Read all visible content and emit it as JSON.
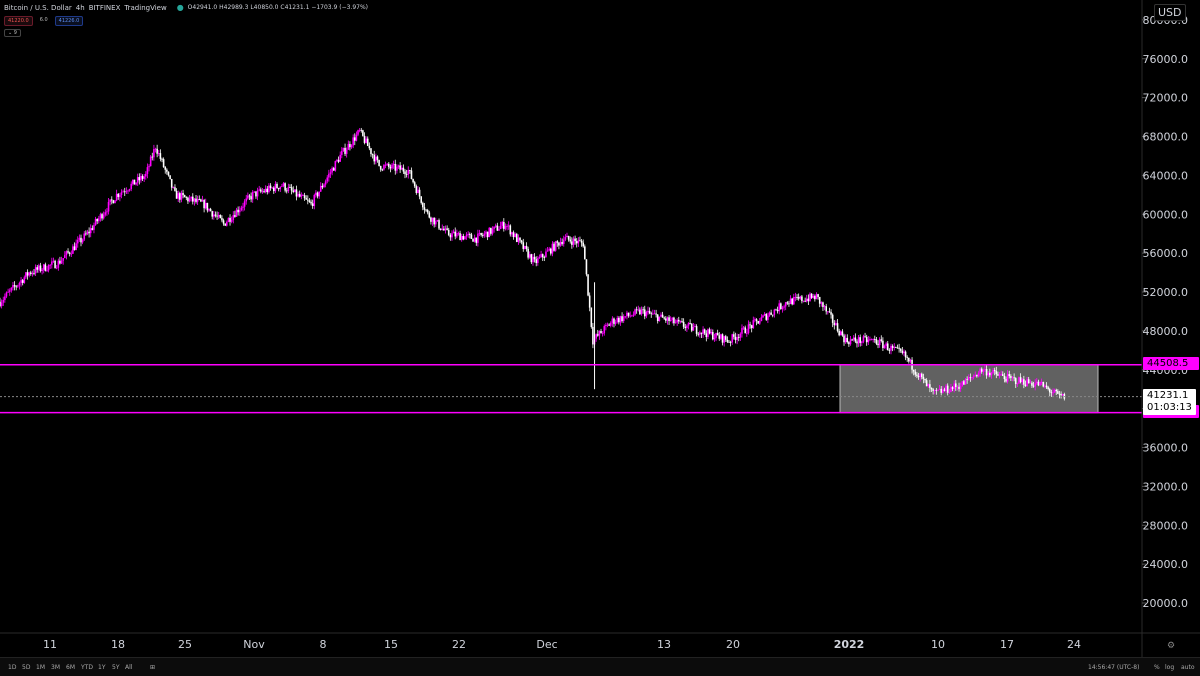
{
  "header": {
    "symbol": "Bitcoin / U.S. Dollar",
    "interval": "4h",
    "exchange": "BITFINEX",
    "source": "TradingView",
    "ohlc": "O42941.0 H42989.3 L40850.0 C41231.1 −1703.9 (−3.97%)"
  },
  "legend": {
    "bid": "41220.0",
    "spread": "6.0",
    "ask": "41226.0",
    "indicator": "9"
  },
  "currency": "USD",
  "colors": {
    "up": "#ff00ff",
    "down": "#ffffff",
    "level_line": "#ff00ff",
    "box": "#8a8a8a",
    "background": "#000000"
  },
  "current_price": {
    "value": 41231.1,
    "label": "41231.1",
    "countdown": "01:03:13"
  },
  "level_labels": [
    "44508.5",
    "39586.5"
  ],
  "time_axis": [
    "11",
    "18",
    "25",
    "Nov",
    "8",
    "15",
    "22",
    "Dec",
    "13",
    "20",
    "2022",
    "10",
    "17",
    "24"
  ],
  "bottom_bar": {
    "timeframes": [
      "1D",
      "5D",
      "1M",
      "3M",
      "6M",
      "YTD",
      "1Y",
      "5Y",
      "All"
    ],
    "clock": "14:56:47 (UTC-8)",
    "options": [
      "%",
      "log",
      "auto"
    ]
  },
  "chart_data": {
    "type": "line",
    "ylabel": "",
    "xlabel": "",
    "ylim": [
      16000,
      82000
    ],
    "y_ticks": [
      20000,
      24000,
      28000,
      32000,
      36000,
      40000,
      44000,
      48000,
      52000,
      56000,
      60000,
      64000,
      68000,
      72000,
      76000,
      80000
    ],
    "y_tick_labels": [
      "20000.0",
      "24000.0",
      "28000.0",
      "32000.0",
      "36000.0",
      "40000.0",
      "44000.0",
      "48000.0",
      "52000.0",
      "56000.0",
      "60000.0",
      "64000.0",
      "68000.0",
      "72000.0",
      "76000.0",
      "80000.0"
    ],
    "x": [
      "2021-10-04",
      "2021-10-07",
      "2021-10-10",
      "2021-10-13",
      "2021-10-16",
      "2021-10-19",
      "2021-10-20",
      "2021-10-22",
      "2021-10-25",
      "2021-10-27",
      "2021-10-30",
      "2021-11-02",
      "2021-11-05",
      "2021-11-08",
      "2021-11-10",
      "2021-11-12",
      "2021-11-15",
      "2021-11-17",
      "2021-11-19",
      "2021-11-22",
      "2021-11-25",
      "2021-11-28",
      "2021-12-01",
      "2021-12-03",
      "2021-12-04",
      "2021-12-06",
      "2021-12-09",
      "2021-12-12",
      "2021-12-15",
      "2021-12-18",
      "2021-12-21",
      "2021-12-24",
      "2021-12-27",
      "2021-12-30",
      "2022-01-02",
      "2022-01-05",
      "2022-01-08",
      "2022-01-11",
      "2022-01-13",
      "2022-01-16",
      "2022-01-19",
      "2022-01-21"
    ],
    "series": [
      {
        "values": [
          51000,
          54000,
          55000,
          58000,
          62000,
          64000,
          67000,
          62000,
          61000,
          59000,
          62000,
          63000,
          61000,
          66000,
          68500,
          65000,
          64500,
          60000,
          58000,
          57500,
          59000,
          55000,
          57500,
          57000,
          47000,
          49000,
          50000,
          49000,
          48000,
          47000,
          49000,
          51000,
          51500,
          47000,
          47000,
          45500,
          41500,
          42500,
          44000,
          43000,
          42500,
          41231
        ]
      }
    ],
    "levels": [
      44508.5,
      39586.5
    ],
    "range_box": {
      "x_start": "2022-01-05",
      "x_end": "2022-01-25",
      "y_low": 39586.5,
      "y_high": 44508.5
    }
  }
}
